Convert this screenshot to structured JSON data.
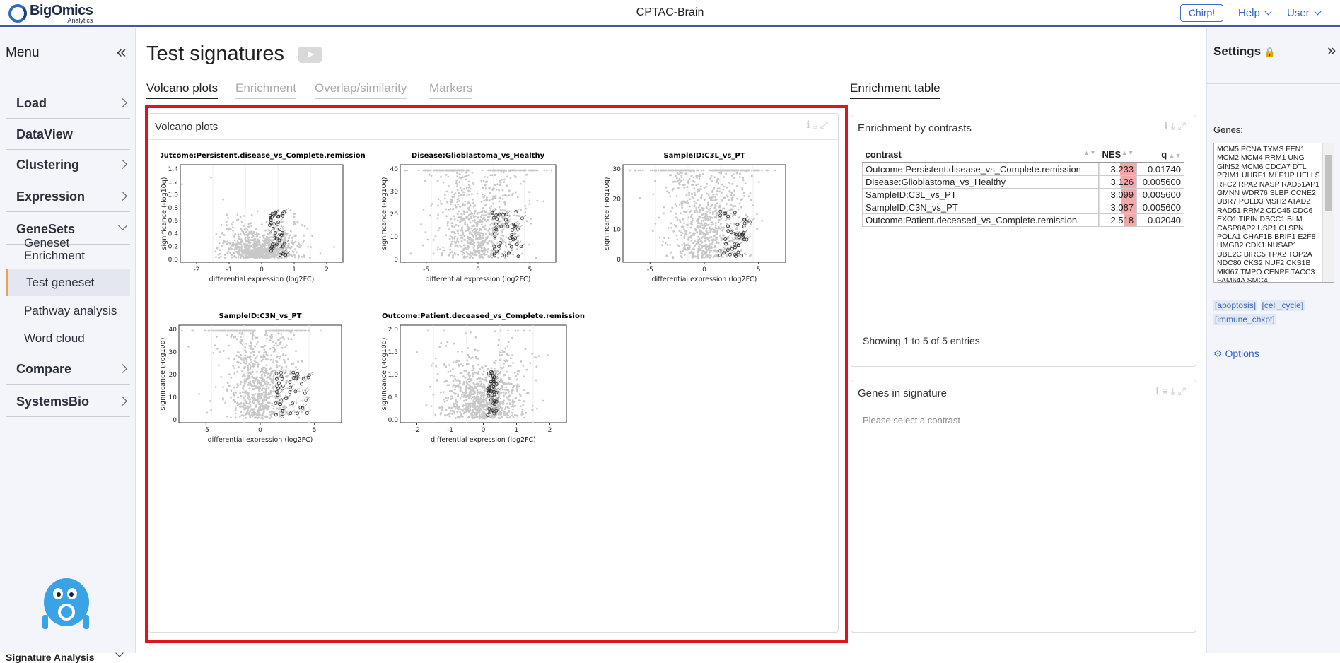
{
  "app": {
    "brand": "BigOmics",
    "brand_sub": "Analytics",
    "title": "CPTAC-Brain",
    "chirp": "Chirp!",
    "help": "Help",
    "user": "User"
  },
  "sidebar": {
    "menu_title": "Menu",
    "items": [
      {
        "label": "Load",
        "state": "collapsed"
      },
      {
        "label": "DataView",
        "state": "none"
      },
      {
        "label": "Clustering",
        "state": "collapsed"
      },
      {
        "label": "Expression",
        "state": "collapsed"
      },
      {
        "label": "GeneSets",
        "state": "expanded"
      },
      {
        "label": "Compare",
        "state": "collapsed"
      },
      {
        "label": "SystemsBio",
        "state": "collapsed"
      }
    ],
    "subitems": [
      "Geneset Enrichment",
      "Test geneset",
      "Pathway analysis",
      "Word cloud"
    ],
    "active_subitem": "Test geneset",
    "footer": "Signature Analysis"
  },
  "main": {
    "page_title": "Test signatures",
    "tabs": [
      {
        "label": "Volcano plots",
        "active": true
      },
      {
        "label": "Enrichment",
        "active": false
      },
      {
        "label": "Overlap/similarity",
        "active": false
      },
      {
        "label": "Markers",
        "active": false
      }
    ],
    "right_tab": "Enrichment table",
    "volcano_panel_title": "Volcano plots"
  },
  "volcano_plots": [
    {
      "title": "Outcome:Persistent.disease_vs_Complete.remission",
      "xticks": [
        "-2",
        "-1",
        "0",
        "1",
        "2"
      ],
      "yticks": [
        "0.0",
        "0.2",
        "0.4",
        "0.6",
        "0.8",
        "1.0",
        "1.2",
        "1.4"
      ],
      "xlabel": "differential expression (log2FC)",
      "ylabel": "significance (-log10q)"
    },
    {
      "title": "Disease:Glioblastoma_vs_Healthy",
      "xticks": [
        "-5",
        "0",
        "5"
      ],
      "yticks": [
        "0",
        "10",
        "20",
        "30",
        "40"
      ],
      "xlabel": "differential expression (log2FC)",
      "ylabel": "significance (-log10q)"
    },
    {
      "title": "SampleID:C3L_vs_PT",
      "xticks": [
        "-5",
        "0",
        "5"
      ],
      "yticks": [
        "0",
        "10",
        "20",
        "30"
      ],
      "xlabel": "differential expression (log2FC)",
      "ylabel": "significance (-log10q)"
    },
    {
      "title": "SampleID:C3N_vs_PT",
      "xticks": [
        "-5",
        "0",
        "5"
      ],
      "yticks": [
        "0",
        "10",
        "20",
        "30",
        "40"
      ],
      "xlabel": "differential expression (log2FC)",
      "ylabel": "significance (-log10q)"
    },
    {
      "title": "Outcome:Patient.deceased_vs_Complete.remission",
      "xticks": [
        "-2",
        "-1",
        "0",
        "1",
        "2"
      ],
      "yticks": [
        "0.0",
        "0.5",
        "1.0",
        "1.5",
        "2.0"
      ],
      "xlabel": "differential expression (log2FC)",
      "ylabel": "significance (-log10q)"
    }
  ],
  "enrichment": {
    "panel_title": "Enrichment by contrasts",
    "columns": [
      "contrast",
      "NES",
      "q"
    ],
    "rows": [
      {
        "contrast": "Outcome:Persistent.disease_vs_Complete.remission",
        "NES": "3.233",
        "q": "0.01740"
      },
      {
        "contrast": "Disease:Glioblastoma_vs_Healthy",
        "NES": "3.126",
        "q": "0.005600"
      },
      {
        "contrast": "SampleID:C3L_vs_PT",
        "NES": "3.099",
        "q": "0.005600"
      },
      {
        "contrast": "SampleID:C3N_vs_PT",
        "NES": "3.087",
        "q": "0.005600"
      },
      {
        "contrast": "Outcome:Patient.deceased_vs_Complete.remission",
        "NES": "2.518",
        "q": "0.02040"
      }
    ],
    "footer": "Showing 1 to 5 of 5 entries"
  },
  "genes_panel": {
    "title": "Genes in signature",
    "placeholder": "Please select a contrast"
  },
  "settings": {
    "title": "Settings",
    "genes_label": "Genes:",
    "genes_text": "MCM5 PCNA TYMS FEN1 MCM2 MCM4 RRM1 UNG GINS2 MCM6 CDCA7 DTL PRIM1 UHRF1 MLF1IP HELLS RFC2 RPA2 NASP RAD51AP1 GMNN WDR76 SLBP CCNE2 UBR7 POLD3 MSH2 ATAD2 RAD51 RRM2 CDC45 CDC6 EXO1 TIPIN DSCC1 BLM CASP8AP2 USP1 CLSPN POLA1 CHAF1B BRIP1 E2F8 HMGB2 CDK1 NUSAP1 UBE2C BIRC5 TPX2 TOP2A NDC80 CKS2 NUF2 CKS1B MKI67 TMPO CENPF TACC3 FAM64A SMC4",
    "chips": [
      "[apoptosis]",
      "[cell_cycle]",
      "[immune_chkpt]"
    ],
    "options": "Options"
  },
  "colors": {
    "accent": "#2d63c8",
    "highlight": "#e0141e",
    "nes_bar": "#f4a9a9",
    "active_marker": "#e8a24d"
  }
}
